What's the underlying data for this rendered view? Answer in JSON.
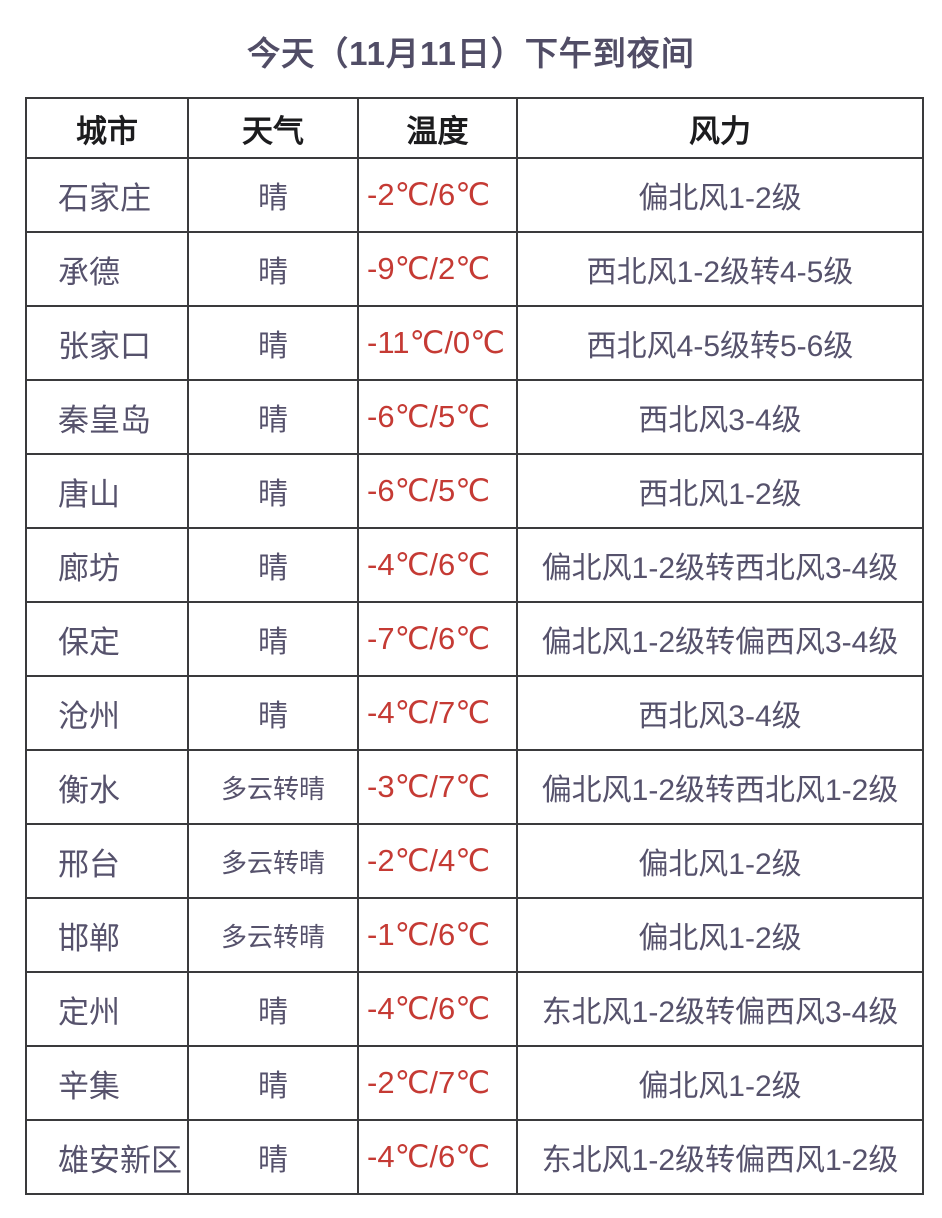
{
  "title": "今天（11月11日）下午到夜间",
  "colors": {
    "title_text": "#514d66",
    "header_text": "#1c1c1e",
    "body_text": "#56526c",
    "temperature_text": "#c53a34",
    "border": "#3a3a3c",
    "background": "#ffffff"
  },
  "table": {
    "headers": [
      "城市",
      "天气",
      "温度",
      "风力"
    ],
    "rows": [
      {
        "city": "石家庄",
        "weather": "晴",
        "temperature": "-2℃/6℃",
        "wind": "偏北风1-2级"
      },
      {
        "city": "承德",
        "weather": "晴",
        "temperature": "-9℃/2℃",
        "wind": "西北风1-2级转4-5级"
      },
      {
        "city": "张家口",
        "weather": "晴",
        "temperature": "-11℃/0℃",
        "wind": "西北风4-5级转5-6级"
      },
      {
        "city": "秦皇岛",
        "weather": "晴",
        "temperature": "-6℃/5℃",
        "wind": "西北风3-4级"
      },
      {
        "city": "唐山",
        "weather": "晴",
        "temperature": "-6℃/5℃",
        "wind": "西北风1-2级"
      },
      {
        "city": "廊坊",
        "weather": "晴",
        "temperature": "-4℃/6℃",
        "wind": "偏北风1-2级转西北风3-4级"
      },
      {
        "city": "保定",
        "weather": "晴",
        "temperature": "-7℃/6℃",
        "wind": "偏北风1-2级转偏西风3-4级"
      },
      {
        "city": "沧州",
        "weather": "晴",
        "temperature": "-4℃/7℃",
        "wind": "西北风3-4级"
      },
      {
        "city": "衡水",
        "weather": "多云转晴",
        "temperature": "-3℃/7℃",
        "wind": "偏北风1-2级转西北风1-2级"
      },
      {
        "city": "邢台",
        "weather": "多云转晴",
        "temperature": "-2℃/4℃",
        "wind": "偏北风1-2级"
      },
      {
        "city": "邯郸",
        "weather": "多云转晴",
        "temperature": "-1℃/6℃",
        "wind": "偏北风1-2级"
      },
      {
        "city": "定州",
        "weather": "晴",
        "temperature": "-4℃/6℃",
        "wind": "东北风1-2级转偏西风3-4级"
      },
      {
        "city": "辛集",
        "weather": "晴",
        "temperature": "-2℃/7℃",
        "wind": "偏北风1-2级"
      },
      {
        "city": "雄安新区",
        "weather": "晴",
        "temperature": "-4℃/6℃",
        "wind": "东北风1-2级转偏西风1-2级"
      }
    ]
  }
}
